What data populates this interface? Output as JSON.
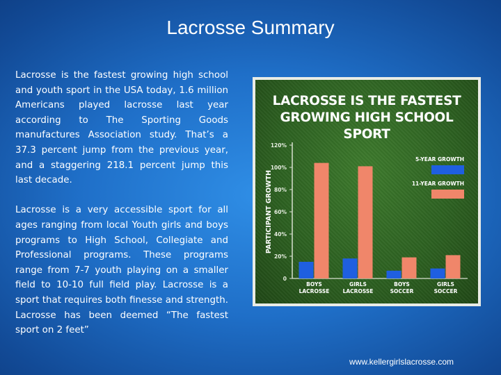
{
  "slide": {
    "title": "Lacrosse Summary",
    "paragraphs": [
      "Lacrosse is the fastest growing high school and youth sport in the USA today, 1.6 million Americans played lacrosse last year according to The Sporting Goods manufactures Association study. That’s a 37.3 percent jump from the previous year, and a staggering 218.1 percent jump this last decade.",
      "Lacrosse is a very accessible sport for all ages ranging from local Youth girls and boys programs to High School, Collegiate and Professional programs. These programs range from 7-7 youth playing on a smaller field to 10-10 full field play. Lacrosse is a sport that requires both finesse and strength. Lacrosse has been deemed “The fastest sport on 2 feet”"
    ],
    "footer_url": "www.kellergirlslacrosse.com"
  },
  "chart_data": {
    "type": "bar",
    "title_lines": [
      "LACROSSE IS THE FASTEST",
      "GROWING HIGH SCHOOL SPORT"
    ],
    "ylabel": "PARTICIPANT GROWTH",
    "xlabel": "",
    "categories": [
      [
        "BOYS",
        "LACROSSE"
      ],
      [
        "GIRLS",
        "LACROSSE"
      ],
      [
        "BOYS",
        "SOCCER"
      ],
      [
        "GIRLS",
        "SOCCER"
      ]
    ],
    "series": [
      {
        "name": "5-YEAR GROWTH",
        "color": "#1f5fe0",
        "values": [
          15,
          18,
          7,
          9
        ]
      },
      {
        "name": "11-YEAR GROWTH",
        "color": "#f0866a",
        "values": [
          104,
          101,
          19,
          21
        ]
      }
    ],
    "yticks": [
      "120%",
      "100%",
      "80%",
      "60%",
      "40%",
      "20%",
      "0"
    ],
    "ytick_values": [
      120,
      100,
      80,
      60,
      40,
      20,
      0
    ],
    "ylim": [
      0,
      120
    ],
    "grid": false,
    "legend_position": "top-right",
    "colors": {
      "field": "#2d6121",
      "frame": "#e9ece6",
      "axis": "#d8e0d0"
    }
  }
}
